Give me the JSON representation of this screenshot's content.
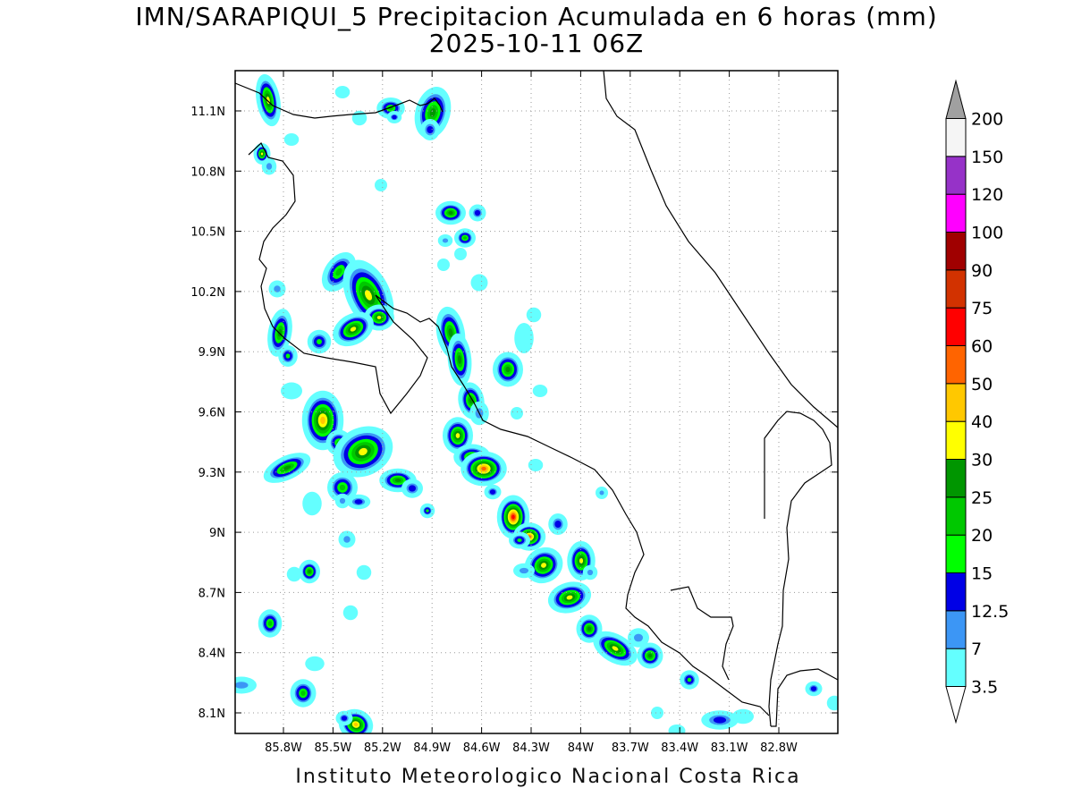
{
  "title": {
    "line1": "IMN/SARAPIQUI_5 Precipitacion Acumulada en 6 horas (mm)",
    "line2": "2025-10-11 06Z"
  },
  "footer": "Instituto Meteorologico Nacional Costa Rica",
  "map": {
    "lon_ticks": [
      "85.8W",
      "85.5W",
      "85.2W",
      "84.9W",
      "84.6W",
      "84.3W",
      "84W",
      "83.7W",
      "83.4W",
      "83.1W",
      "82.8W"
    ],
    "lat_ticks": [
      "11.1N",
      "10.8N",
      "10.5N",
      "10.2N",
      "9.9N",
      "9.6N",
      "9.3N",
      "9N",
      "8.7N",
      "8.4N",
      "8.1N"
    ],
    "grid": true
  },
  "colorbar": {
    "levels": [
      "3.5",
      "7",
      "12.5",
      "15",
      "20",
      "25",
      "30",
      "40",
      "50",
      "60",
      "75",
      "90",
      "100",
      "120",
      "150",
      "200"
    ],
    "colors": [
      "#64ffff",
      "#3c96f5",
      "#0000e6",
      "#00ff00",
      "#00c800",
      "#009600",
      "#ffff00",
      "#ffc800",
      "#ff6400",
      "#ff0000",
      "#d23200",
      "#a00000",
      "#ff00ff",
      "#9632c8",
      "#f5f5f5",
      "#a0a0a0"
    ]
  }
}
